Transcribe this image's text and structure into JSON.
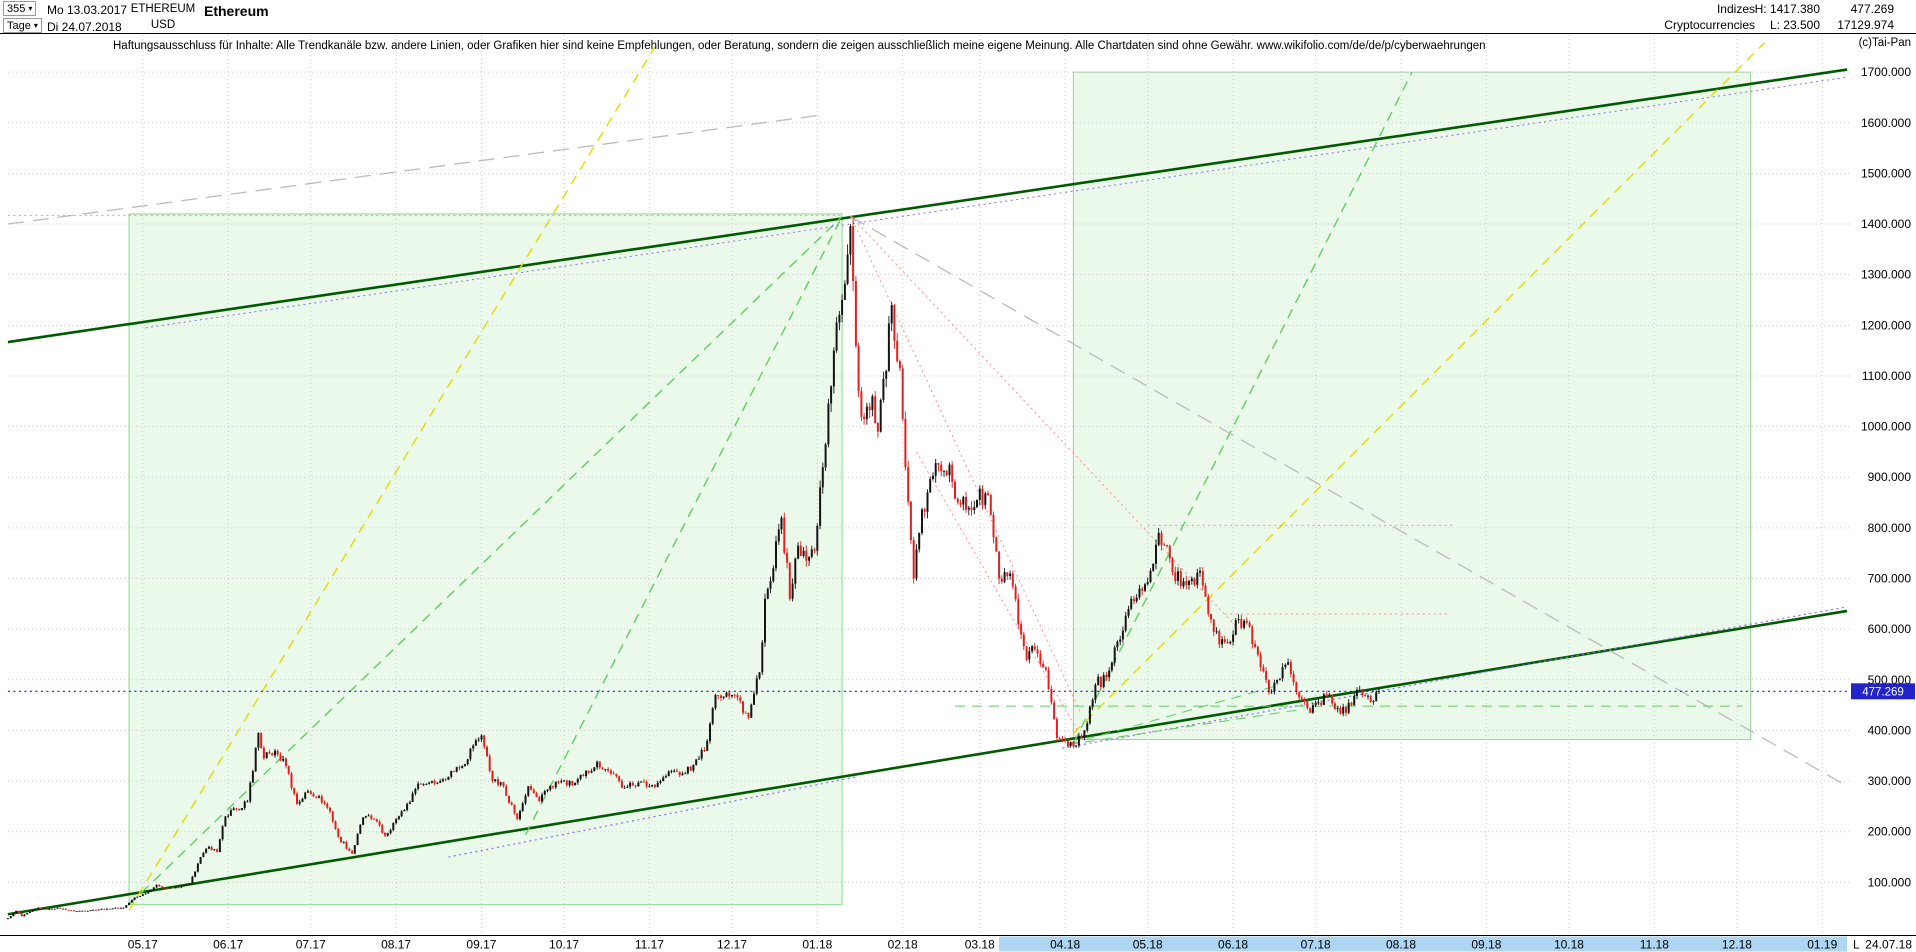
{
  "header": {
    "period": {
      "value": "355"
    },
    "timeframe": {
      "value": "Tage"
    },
    "start_date": "Mo 13.03.2017",
    "end_date": "Di 24.07.2018",
    "symbol": "ETHEREUM",
    "currency": "USD",
    "title": "Ethereum",
    "right": {
      "category_row1": "Indizes",
      "category_row2": "Cryptocurrencies",
      "high": "H: 1417.380",
      "low": "L: 23.500",
      "value_row1": "477.269",
      "value_row2": "17129.974"
    }
  },
  "disclaimer": "Haftungsausschluss für Inhalte: Alle Trendkanäle bzw. andere Linien, oder Grafiken hier sind keine Empfehlungen, oder Beratung, sondern die zeigen ausschließlich meine eigene Meinung. Alle Chartdaten sind ohne Gewähr. www.wikifolio.com/de/de/p/cyberwaehrungen",
  "copyright": "(c)Tai-Pan",
  "colors": {
    "candle_up": "#141414",
    "candle_down": "#e02020",
    "dark_green": "#005a00",
    "light_green": "#63cc63",
    "region_fill": "#d9f4d9",
    "region_stroke": "#8fd98f",
    "yellow": "#dede00",
    "gray": "#bbbbbb",
    "red": "#ff8c8c",
    "violet": "#8a6cf0",
    "blue": "#1414e6",
    "grid": "#cacaca",
    "price_tag_bg": "#2323cc",
    "price_tag_text": "#ffffff",
    "axis_highlight": "#aed6f2",
    "axis_text": "#000000"
  },
  "chart_data": {
    "type": "candlestick",
    "instrument": "ETHEREUM",
    "currency": "USD",
    "timeframe": "Tage",
    "bars_shown": "355",
    "range_start": "Mo 13.03.2017",
    "range_end": "Di 24.07.2018",
    "last_price": 477.269,
    "high": 1417.38,
    "low": 23.5,
    "price_axis": {
      "min": 0,
      "max": 1750,
      "ticks": [
        100,
        200,
        300,
        400,
        500,
        600,
        700,
        800,
        900,
        1000,
        1100,
        1200,
        1300,
        1400,
        1500,
        1600,
        1700
      ]
    },
    "time_axis": {
      "ticks": [
        {
          "d": 49,
          "l": "05.17"
        },
        {
          "d": 80,
          "l": "06.17"
        },
        {
          "d": 110,
          "l": "07.17"
        },
        {
          "d": 141,
          "l": "08.17"
        },
        {
          "d": 172,
          "l": "09.17"
        },
        {
          "d": 202,
          "l": "10.17"
        },
        {
          "d": 233,
          "l": "11.17"
        },
        {
          "d": 263,
          "l": "12.17"
        },
        {
          "d": 294,
          "l": "01.18"
        },
        {
          "d": 325,
          "l": "02.18"
        },
        {
          "d": 353,
          "l": "03.18"
        },
        {
          "d": 384,
          "l": "04.18"
        },
        {
          "d": 414,
          "l": "05.18"
        },
        {
          "d": 445,
          "l": "06.18"
        },
        {
          "d": 475,
          "l": "07.18"
        },
        {
          "d": 506,
          "l": "08.18"
        },
        {
          "d": 537,
          "l": "09.18"
        },
        {
          "d": 567,
          "l": "10.18"
        },
        {
          "d": 598,
          "l": "11.18"
        },
        {
          "d": 628,
          "l": "12.18"
        },
        {
          "d": 659,
          "l": "01.19"
        }
      ],
      "highlight_days": [
        360,
        668
      ],
      "last_marker": "L",
      "last_date": "24.07.18"
    },
    "close_path_format": "[days_since_2017-03-13, close_in_usd]",
    "close_path": [
      [
        0,
        29
      ],
      [
        3,
        44
      ],
      [
        5,
        33
      ],
      [
        11,
        50
      ],
      [
        14,
        46
      ],
      [
        18,
        50
      ],
      [
        24,
        43
      ],
      [
        30,
        45
      ],
      [
        36,
        48
      ],
      [
        42,
        50
      ],
      [
        46,
        70
      ],
      [
        50,
        78
      ],
      [
        54,
        95
      ],
      [
        58,
        88
      ],
      [
        62,
        90
      ],
      [
        66,
        97
      ],
      [
        70,
        150
      ],
      [
        73,
        170
      ],
      [
        76,
        160
      ],
      [
        79,
        230
      ],
      [
        83,
        245
      ],
      [
        87,
        260
      ],
      [
        91,
        395
      ],
      [
        93,
        345
      ],
      [
        97,
        360
      ],
      [
        101,
        330
      ],
      [
        105,
        255
      ],
      [
        109,
        280
      ],
      [
        113,
        270
      ],
      [
        117,
        240
      ],
      [
        120,
        190
      ],
      [
        125,
        157
      ],
      [
        129,
        228
      ],
      [
        133,
        225
      ],
      [
        137,
        192
      ],
      [
        141,
        225
      ],
      [
        145,
        255
      ],
      [
        149,
        295
      ],
      [
        153,
        297
      ],
      [
        157,
        300
      ],
      [
        161,
        320
      ],
      [
        165,
        330
      ],
      [
        169,
        370
      ],
      [
        172,
        390
      ],
      [
        176,
        300
      ],
      [
        180,
        290
      ],
      [
        185,
        225
      ],
      [
        189,
        290
      ],
      [
        193,
        260
      ],
      [
        197,
        290
      ],
      [
        201,
        300
      ],
      [
        205,
        292
      ],
      [
        209,
        310
      ],
      [
        214,
        338
      ],
      [
        219,
        315
      ],
      [
        224,
        287
      ],
      [
        229,
        297
      ],
      [
        233,
        290
      ],
      [
        237,
        300
      ],
      [
        241,
        320
      ],
      [
        245,
        315
      ],
      [
        249,
        332
      ],
      [
        253,
        360
      ],
      [
        257,
        470
      ],
      [
        261,
        475
      ],
      [
        265,
        465
      ],
      [
        269,
        425
      ],
      [
        273,
        515
      ],
      [
        275,
        660
      ],
      [
        277,
        695
      ],
      [
        281,
        820
      ],
      [
        284,
        660
      ],
      [
        287,
        765
      ],
      [
        290,
        735
      ],
      [
        293,
        755
      ],
      [
        295,
        880
      ],
      [
        297,
        965
      ],
      [
        300,
        1150
      ],
      [
        303,
        1250
      ],
      [
        306,
        1396
      ],
      [
        309,
        1070
      ],
      [
        311,
        1015
      ],
      [
        314,
        1060
      ],
      [
        316,
        990
      ],
      [
        319,
        1110
      ],
      [
        321,
        1240
      ],
      [
        324,
        1115
      ],
      [
        326,
        920
      ],
      [
        329,
        700
      ],
      [
        331,
        790
      ],
      [
        334,
        870
      ],
      [
        338,
        925
      ],
      [
        342,
        925
      ],
      [
        345,
        850
      ],
      [
        349,
        840
      ],
      [
        352,
        855
      ],
      [
        356,
        865
      ],
      [
        360,
        700
      ],
      [
        364,
        710
      ],
      [
        367,
        610
      ],
      [
        370,
        540
      ],
      [
        373,
        560
      ],
      [
        377,
        520
      ],
      [
        381,
        385
      ],
      [
        384,
        380
      ],
      [
        388,
        370
      ],
      [
        391,
        400
      ],
      [
        395,
        490
      ],
      [
        399,
        505
      ],
      [
        403,
        575
      ],
      [
        407,
        640
      ],
      [
        411,
        680
      ],
      [
        415,
        715
      ],
      [
        418,
        790
      ],
      [
        422,
        740
      ],
      [
        426,
        685
      ],
      [
        430,
        700
      ],
      [
        433,
        715
      ],
      [
        436,
        630
      ],
      [
        440,
        570
      ],
      [
        444,
        575
      ],
      [
        447,
        620
      ],
      [
        451,
        605
      ],
      [
        455,
        525
      ],
      [
        458,
        475
      ],
      [
        461,
        500
      ],
      [
        465,
        535
      ],
      [
        469,
        465
      ],
      [
        473,
        435
      ],
      [
        476,
        455
      ],
      [
        479,
        470
      ],
      [
        483,
        445
      ],
      [
        486,
        435
      ],
      [
        490,
        480
      ],
      [
        493,
        468
      ],
      [
        496,
        458
      ],
      [
        498,
        477.269
      ]
    ],
    "regions": [
      {
        "name": "uptrend-box-2017",
        "d1": 44,
        "p1": 56,
        "d2": 303,
        "p2": 1420
      },
      {
        "name": "uptrend-box-2018",
        "d1": 387,
        "p1": 382,
        "d2": 633,
        "p2": 1700
      }
    ],
    "lines": [
      {
        "n": "upper-trend-line",
        "a": [
          0,
          1167
        ],
        "b": [
          668,
          1705
        ],
        "c": "dark_green",
        "s": "solid",
        "w": 2.6
      },
      {
        "n": "lower-trend-line",
        "a": [
          0,
          37
        ],
        "b": [
          668,
          636
        ],
        "c": "dark_green",
        "s": "solid",
        "w": 2.6
      },
      {
        "n": "fan-line-2017-a",
        "a": [
          44,
          56
        ],
        "b": [
          303,
          1415
        ],
        "c": "light_green",
        "s": "dash",
        "w": 1.4
      },
      {
        "n": "fan-line-2017-b",
        "a": [
          188,
          194
        ],
        "b": [
          303,
          1415
        ],
        "c": "light_green",
        "s": "dash",
        "w": 1.4
      },
      {
        "n": "fan-line-2018-steep",
        "a": [
          387,
          375
        ],
        "b": [
          510,
          1700
        ],
        "c": "light_green",
        "s": "dash",
        "w": 1.4
      },
      {
        "n": "yellow-fan-2017",
        "a": [
          44,
          45
        ],
        "b": [
          235,
          1750
        ],
        "c": "yellow",
        "s": "dash",
        "w": 1.4
      },
      {
        "n": "yellow-fan-2018",
        "a": [
          387,
          394
        ],
        "b": [
          638,
          1758
        ],
        "c": "yellow",
        "s": "dash",
        "w": 1.4
      },
      {
        "n": "gray-upper-channel",
        "a": [
          0,
          1400
        ],
        "b": [
          295,
          1615
        ],
        "c": "gray",
        "s": "longdash",
        "w": 1.3
      },
      {
        "n": "gray-downtrend",
        "a": [
          306,
          1415
        ],
        "b": [
          668,
          290
        ],
        "c": "gray",
        "s": "longdash",
        "w": 1.3
      },
      {
        "n": "high-resistance-1417",
        "a": [
          0,
          1417
        ],
        "b": [
          303,
          1417
        ],
        "c": "red",
        "s": "dot",
        "w": 1
      },
      {
        "n": "red-downtrend-a",
        "a": [
          306,
          1417
        ],
        "b": [
          390,
          430
        ],
        "c": "red",
        "s": "dot",
        "w": 1
      },
      {
        "n": "red-downtrend-b",
        "a": [
          306,
          1417
        ],
        "b": [
          447,
          600
        ],
        "c": "red",
        "s": "dot",
        "w": 1
      },
      {
        "n": "red-downtrend-parallel",
        "a": [
          330,
          950
        ],
        "b": [
          389,
          395
        ],
        "c": "red",
        "s": "dot",
        "w": 1
      },
      {
        "n": "resistance-805",
        "a": [
          414,
          805
        ],
        "b": [
          525,
          805
        ],
        "c": "red",
        "s": "dot",
        "w": 1
      },
      {
        "n": "resistance-630",
        "a": [
          442,
          630
        ],
        "b": [
          524,
          630
        ],
        "c": "red",
        "s": "dot",
        "w": 1
      },
      {
        "n": "support-448",
        "a": [
          344,
          448
        ],
        "b": [
          630,
          448
        ],
        "c": "light_green",
        "s": "dash",
        "w": 1
      },
      {
        "n": "violet-support-2017",
        "a": [
          160,
          150
        ],
        "b": [
          308,
          308
        ],
        "c": "violet",
        "s": "dot",
        "w": 1.2
      },
      {
        "n": "violet-support-2018",
        "a": [
          383,
          365
        ],
        "b": [
          668,
          644
        ],
        "c": "violet",
        "s": "dot",
        "w": 1.2
      },
      {
        "n": "violet-upper-parallel",
        "a": [
          50,
          1195
        ],
        "b": [
          668,
          1690
        ],
        "c": "violet",
        "s": "dot",
        "w": 1
      },
      {
        "n": "green-fan-small-a",
        "a": [
          385,
          372
        ],
        "b": [
          462,
          490
        ],
        "c": "light_green",
        "s": "dash",
        "w": 1
      },
      {
        "n": "green-fan-small-b",
        "a": [
          385,
          372
        ],
        "b": [
          468,
          440
        ],
        "c": "light_green",
        "s": "dash",
        "w": 1
      },
      {
        "n": "last-price-line",
        "a": [
          0,
          477.269
        ],
        "b": [
          668,
          477.269
        ],
        "c": "blue",
        "s": "dot",
        "w": 1.2,
        "top": true
      }
    ]
  }
}
